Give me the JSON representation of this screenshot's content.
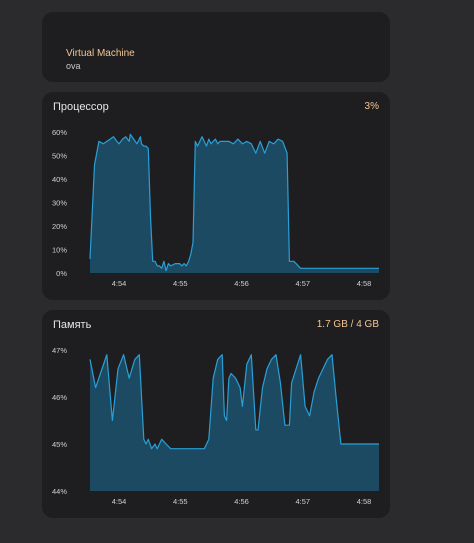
{
  "vm": {
    "name": "Virtual Machine",
    "type": "ova"
  },
  "cpu": {
    "title": "Процессор",
    "value": "3%"
  },
  "memory": {
    "title": "Память",
    "value": "1.7 GB / 4 GB"
  },
  "colors": {
    "accent": "#f3c694",
    "line": "#2a9fd6",
    "fill": "#1d4a63",
    "card": "#1e1e20",
    "background": "#2b2b2d"
  },
  "chart_data": [
    {
      "type": "area",
      "title": "Процессор",
      "x_ticks": [
        "4:54",
        "4:55",
        "4:56",
        "4:57",
        "4:58"
      ],
      "y_ticks": [
        "60%",
        "50%",
        "40%",
        "30%",
        "20%",
        "10%",
        "0%"
      ],
      "ylim": [
        0,
        60
      ],
      "x": [
        0,
        0.067,
        0.133,
        0.2,
        0.25,
        0.3,
        0.35,
        0.4,
        0.433,
        0.483,
        0.533,
        0.583,
        0.6,
        0.65,
        0.7,
        0.75,
        0.767,
        0.8,
        0.833,
        0.867,
        0.9,
        0.933,
        0.967,
        1,
        1.033,
        1.067,
        1.1,
        1.133,
        1.167,
        1.2,
        1.267,
        1.333,
        1.367,
        1.4,
        1.433,
        1.467,
        1.5,
        1.533,
        1.567,
        1.6,
        1.633,
        1.667,
        1.7,
        1.733,
        1.767,
        1.8,
        1.833,
        1.867,
        1.9,
        1.933,
        1.967,
        2,
        2.067,
        2.133,
        2.2,
        2.267,
        2.333,
        2.4,
        2.467,
        2.533,
        2.6,
        2.667,
        2.733,
        2.8,
        2.867,
        2.933,
        2.967,
        3,
        3.033,
        3.067,
        3.1,
        3.133,
        3.167,
        3.2,
        3.233,
        3.267,
        3.333,
        3.4,
        3.467,
        3.533,
        3.567,
        3.6,
        3.667,
        3.733,
        3.8,
        3.867,
        3.933,
        4,
        4.067,
        4.133,
        4.2,
        4.267,
        4.3
      ],
      "y": [
        6,
        46,
        56,
        55,
        56,
        57,
        58,
        56,
        55,
        57,
        58,
        56,
        59,
        57,
        55,
        58,
        55,
        54,
        54,
        53,
        24,
        5,
        5,
        3,
        3,
        2,
        5,
        1,
        4,
        3,
        4,
        4,
        3,
        4,
        3,
        5,
        8,
        13,
        56,
        54,
        56,
        58,
        56,
        54,
        57,
        55,
        56,
        57,
        55,
        56,
        56,
        56,
        56,
        55,
        57,
        55,
        56,
        55,
        51,
        56,
        51,
        56,
        55,
        57,
        56,
        51,
        5,
        5,
        5,
        4,
        3,
        2,
        2,
        2,
        2,
        2,
        2,
        2,
        2,
        2,
        2,
        2,
        2,
        2,
        2,
        2,
        2,
        2,
        2,
        2,
        2,
        2,
        2
      ]
    },
    {
      "type": "area",
      "title": "Память",
      "x_ticks": [
        "4:54",
        "4:55",
        "4:56",
        "4:57",
        "4:58"
      ],
      "y_ticks": [
        "47%",
        "46%",
        "45%",
        "44%"
      ],
      "ylim": [
        44,
        47
      ],
      "x": [
        0,
        0.083,
        0.25,
        0.333,
        0.417,
        0.5,
        0.583,
        0.667,
        0.733,
        0.8,
        0.833,
        0.867,
        0.917,
        0.967,
        1,
        1.067,
        1.133,
        1.2,
        1.267,
        1.333,
        1.4,
        1.467,
        1.533,
        1.6,
        1.667,
        1.7,
        1.767,
        1.833,
        1.9,
        1.967,
        2,
        2.033,
        2.067,
        2.1,
        2.167,
        2.233,
        2.267,
        2.333,
        2.4,
        2.467,
        2.5,
        2.567,
        2.633,
        2.7,
        2.767,
        2.833,
        2.9,
        2.967,
        3,
        3.067,
        3.133,
        3.2,
        3.267,
        3.333,
        3.4,
        3.467,
        3.533,
        3.6,
        3.667,
        3.733,
        3.8,
        3.867,
        3.933,
        4,
        4.067,
        4.133,
        4.2,
        4.3
      ],
      "y": [
        46.8,
        46.2,
        46.9,
        45.5,
        46.6,
        46.9,
        46.4,
        46.8,
        46.9,
        45.1,
        45.0,
        45.1,
        44.9,
        45.0,
        44.9,
        45.1,
        45.0,
        44.9,
        44.9,
        44.9,
        44.9,
        44.9,
        44.9,
        44.9,
        44.9,
        44.9,
        45.1,
        46.4,
        46.8,
        46.9,
        45.6,
        45.5,
        46.4,
        46.5,
        46.4,
        46.2,
        45.8,
        46.7,
        46.9,
        45.3,
        45.3,
        46.2,
        46.6,
        46.8,
        46.9,
        46.3,
        45.4,
        45.4,
        46.3,
        46.6,
        46.9,
        45.8,
        45.6,
        46.1,
        46.4,
        46.6,
        46.8,
        46.9,
        45.9,
        45.0,
        45.0,
        45.0,
        45.0,
        45.0,
        45.0,
        45.0,
        45.0,
        45.0
      ]
    }
  ]
}
